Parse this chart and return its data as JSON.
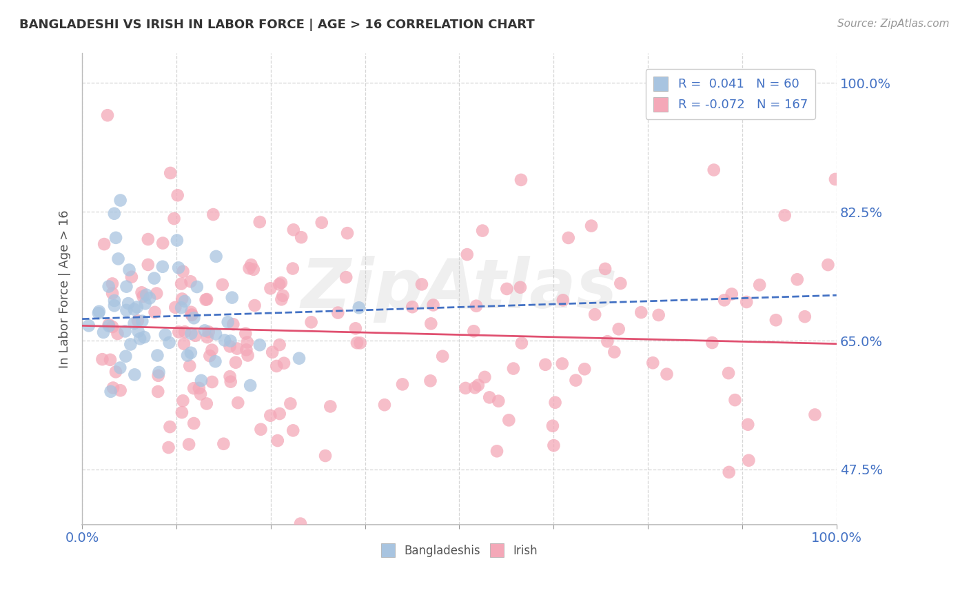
{
  "title": "BANGLADESHI VS IRISH IN LABOR FORCE | AGE > 16 CORRELATION CHART",
  "source": "Source: ZipAtlas.com",
  "ylabel": "In Labor Force | Age > 16",
  "xlim": [
    0.0,
    1.0
  ],
  "ylim": [
    0.4,
    1.04
  ],
  "yticks": [
    0.475,
    0.65,
    0.825,
    1.0
  ],
  "ytick_labels": [
    "47.5%",
    "65.0%",
    "82.5%",
    "100.0%"
  ],
  "xticks": [
    0.0,
    0.125,
    0.25,
    0.375,
    0.5,
    0.625,
    0.75,
    0.875,
    1.0
  ],
  "blue_R": 0.041,
  "blue_N": 60,
  "pink_R": -0.072,
  "pink_N": 167,
  "blue_color": "#A8C4E0",
  "pink_color": "#F4A8B8",
  "blue_line_color": "#4472C4",
  "pink_line_color": "#E05070",
  "background_color": "#FFFFFF",
  "grid_color": "#CCCCCC",
  "title_color": "#333333",
  "watermark": "ZipAtlas",
  "seed": 12345
}
